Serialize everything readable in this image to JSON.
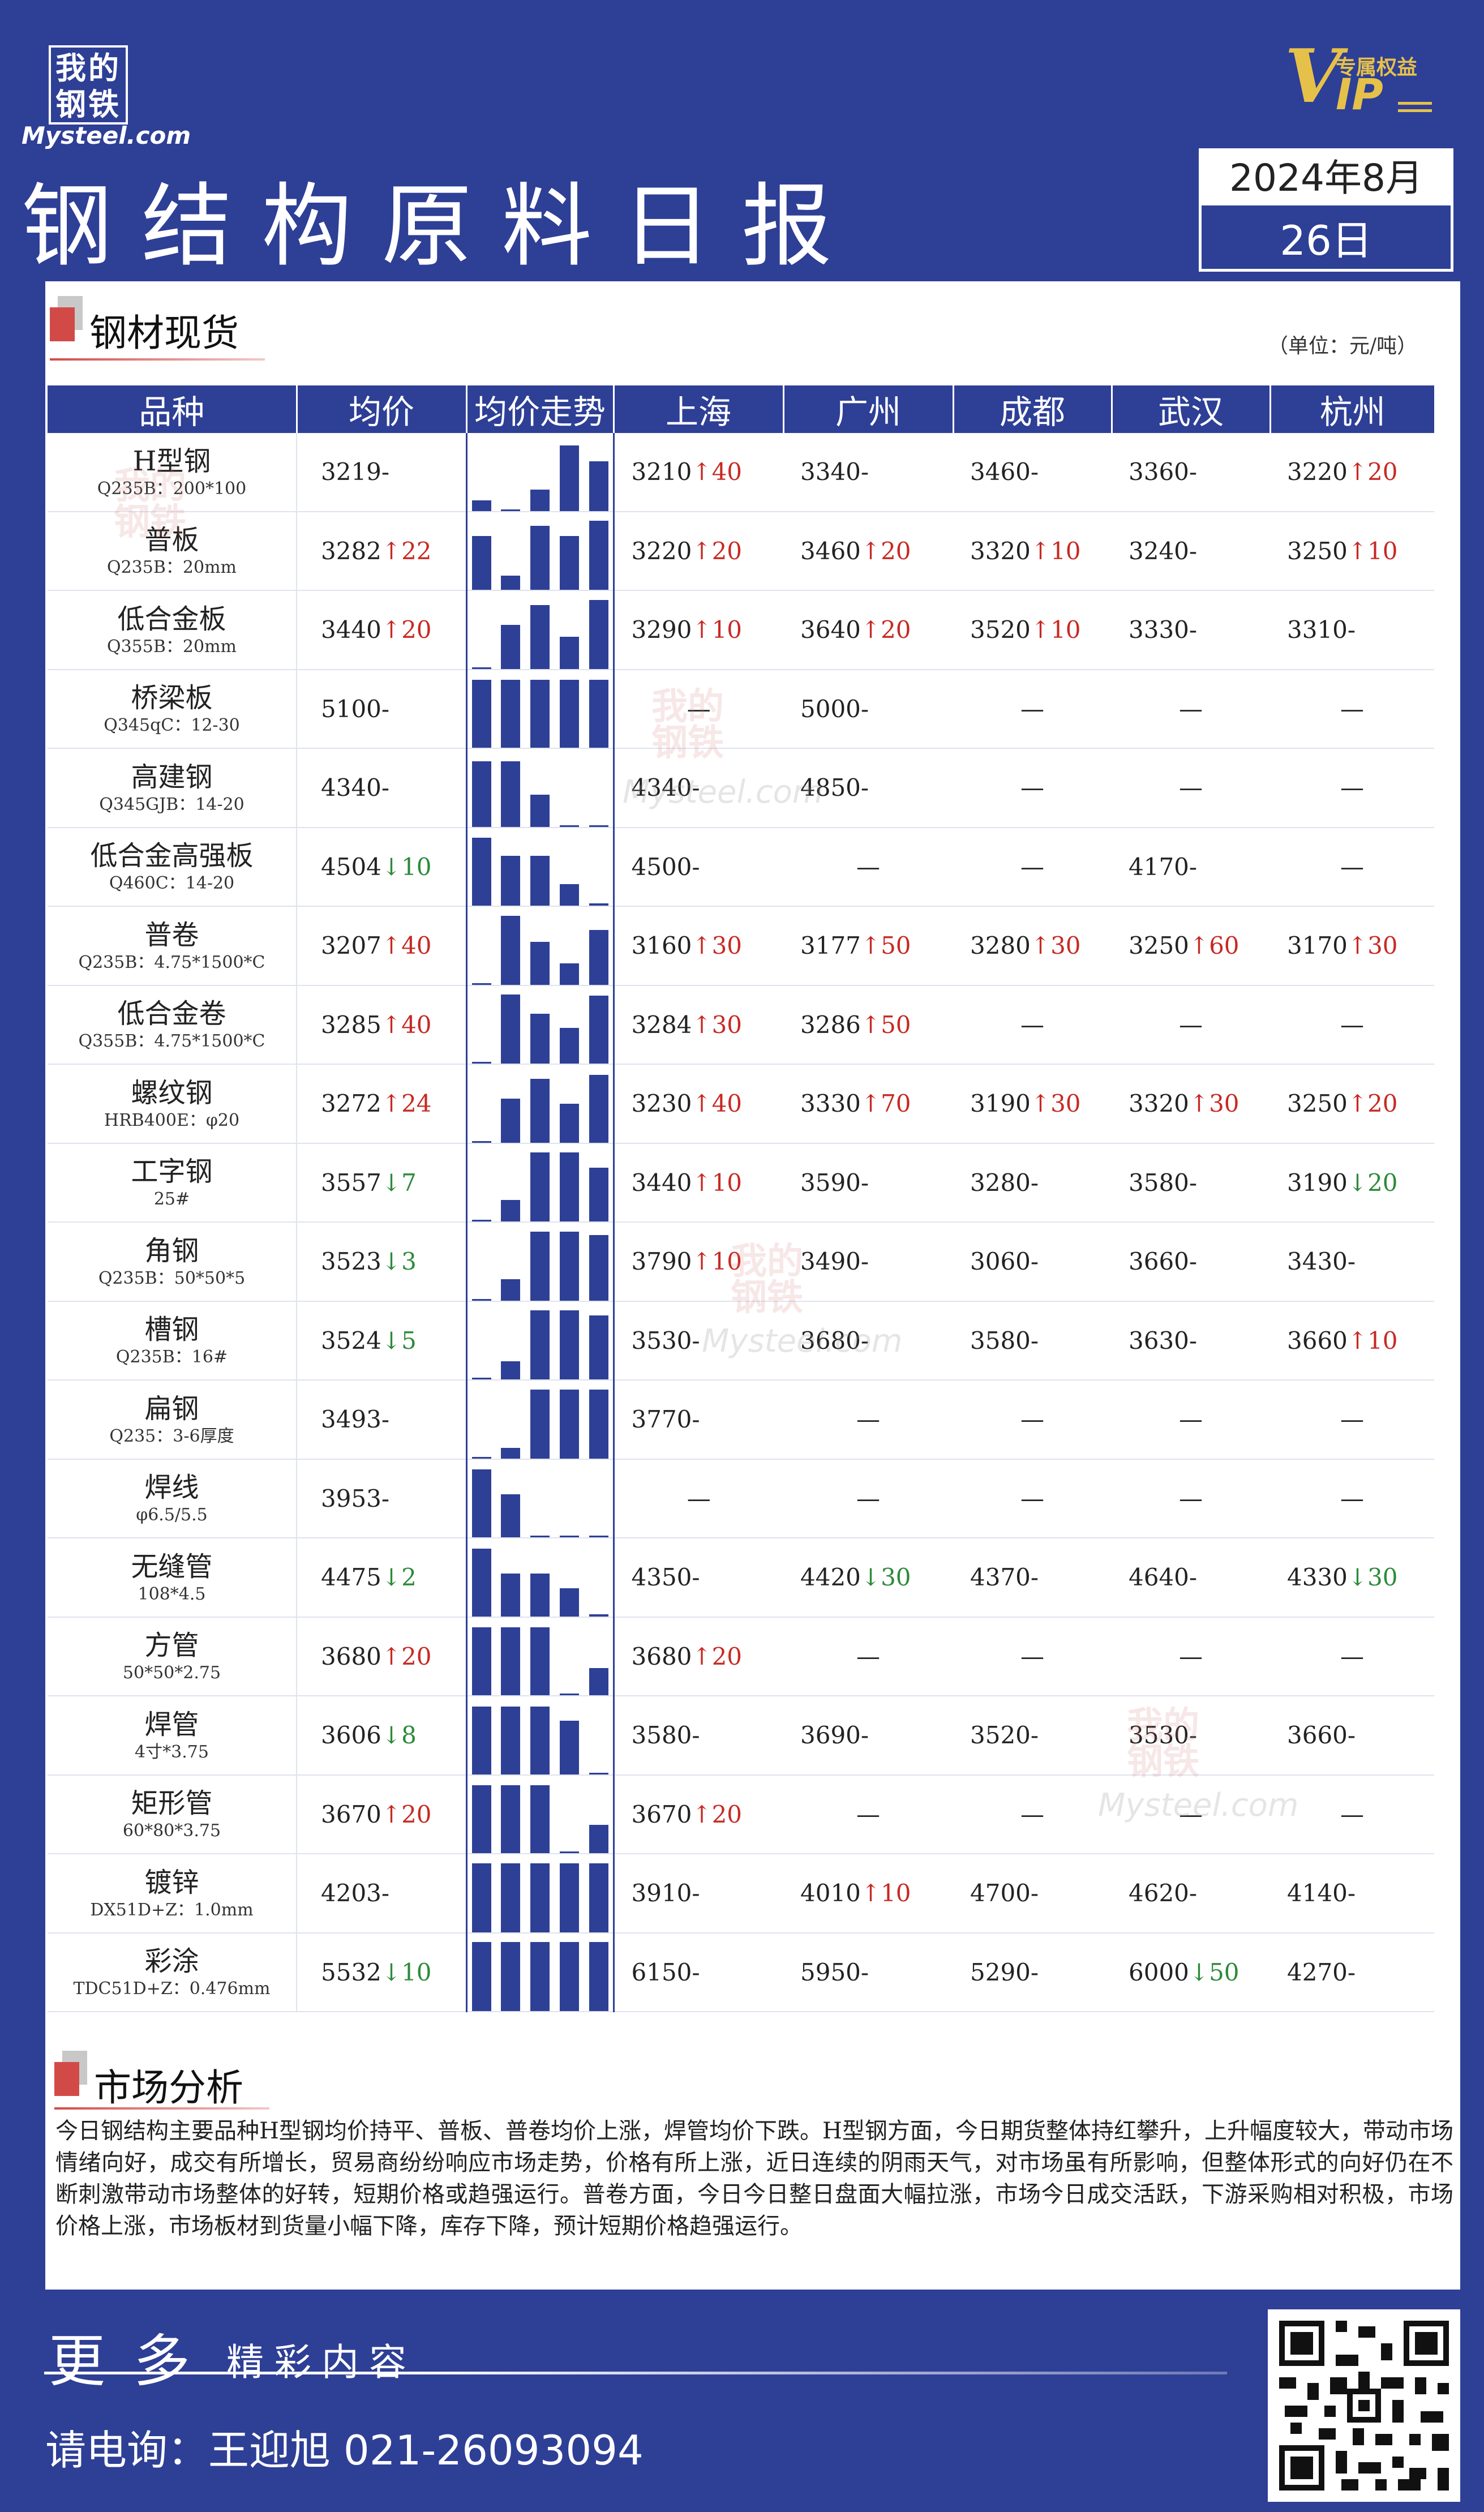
{
  "header": {
    "logo_cn": "我的钢铁",
    "logo_en": "Mysteel.com",
    "vip_tag": "专属权益",
    "vip_mark": "VIP",
    "title": "钢结构原料日报",
    "date_ym": "2024年8月",
    "date_d": "26日"
  },
  "section_spot": {
    "title": "钢材现货",
    "unit": "（单位：元/吨）"
  },
  "table": {
    "headers": [
      "品种",
      "均价",
      "均价走势",
      "上海",
      "广州",
      "成都",
      "武汉",
      "杭州"
    ],
    "rows": [
      {
        "name": "H型钢",
        "spec": "Q235B：200*100",
        "avg": "3219",
        "avg_chg": "-",
        "trend": [
          0.15,
          0.02,
          0.3,
          0.92,
          0.7
        ],
        "sh": "3210",
        "sh_chg": "↑40",
        "gz": "3340",
        "gz_chg": "-",
        "cd": "3460",
        "cd_chg": "-",
        "wh": "3360",
        "wh_chg": "-",
        "hz": "3220",
        "hz_chg": "↑20"
      },
      {
        "name": "普板",
        "spec": "Q235B：20mm",
        "avg": "3282",
        "avg_chg": "↑22",
        "trend": [
          0.75,
          0.2,
          0.9,
          0.75,
          0.97
        ],
        "sh": "3220",
        "sh_chg": "↑20",
        "gz": "3460",
        "gz_chg": "↑20",
        "cd": "3320",
        "cd_chg": "↑10",
        "wh": "3240",
        "wh_chg": "-",
        "hz": "3250",
        "hz_chg": "↑10"
      },
      {
        "name": "低合金板",
        "spec": "Q355B：20mm",
        "avg": "3440",
        "avg_chg": "↑20",
        "trend": [
          0.02,
          0.62,
          0.9,
          0.45,
          0.97
        ],
        "sh": "3290",
        "sh_chg": "↑10",
        "gz": "3640",
        "gz_chg": "↑20",
        "cd": "3520",
        "cd_chg": "↑10",
        "wh": "3330",
        "wh_chg": "-",
        "hz": "3310",
        "hz_chg": "-"
      },
      {
        "name": "桥梁板",
        "spec": "Q345qC：12-30",
        "avg": "5100",
        "avg_chg": "-",
        "trend": [
          0.95,
          0.95,
          0.95,
          0.95,
          0.95
        ],
        "sh": "",
        "sh_chg": "—",
        "gz": "5000",
        "gz_chg": "-",
        "cd": "",
        "cd_chg": "—",
        "wh": "",
        "wh_chg": "—",
        "hz": "",
        "hz_chg": "—"
      },
      {
        "name": "高建钢",
        "spec": "Q345GJB：14-20",
        "avg": "4340",
        "avg_chg": "-",
        "trend": [
          0.92,
          0.92,
          0.45,
          0.02,
          0.02
        ],
        "sh": "4340",
        "sh_chg": "-",
        "gz": "4850",
        "gz_chg": "-",
        "cd": "",
        "cd_chg": "—",
        "wh": "",
        "wh_chg": "—",
        "hz": "",
        "hz_chg": "—"
      },
      {
        "name": "低合金高强板",
        "spec": "Q460C：14-20",
        "avg": "4504",
        "avg_chg": "↓10",
        "trend": [
          0.95,
          0.7,
          0.7,
          0.3,
          0.03
        ],
        "sh": "4500",
        "sh_chg": "-",
        "gz": "",
        "gz_chg": "—",
        "cd": "",
        "cd_chg": "—",
        "wh": "4170",
        "wh_chg": "-",
        "hz": "",
        "hz_chg": "—"
      },
      {
        "name": "普卷",
        "spec": "Q235B：4.75*1500*C",
        "avg": "3207",
        "avg_chg": "↑40",
        "trend": [
          0.02,
          0.97,
          0.6,
          0.3,
          0.77
        ],
        "sh": "3160",
        "sh_chg": "↑30",
        "gz": "3177",
        "gz_chg": "↑50",
        "cd": "3280",
        "cd_chg": "↑30",
        "wh": "3250",
        "wh_chg": "↑60",
        "hz": "3170",
        "hz_chg": "↑30"
      },
      {
        "name": "低合金卷",
        "spec": "Q355B：4.75*1500*C",
        "avg": "3285",
        "avg_chg": "↑40",
        "trend": [
          0.02,
          0.97,
          0.7,
          0.5,
          0.95
        ],
        "sh": "3284",
        "sh_chg": "↑30",
        "gz": "3286",
        "gz_chg": "↑50",
        "cd": "",
        "cd_chg": "—",
        "wh": "",
        "wh_chg": "—",
        "hz": "",
        "hz_chg": "—"
      },
      {
        "name": "螺纹钢",
        "spec": "HRB400E：φ20",
        "avg": "3272",
        "avg_chg": "↑24",
        "trend": [
          0.02,
          0.62,
          0.9,
          0.55,
          0.95
        ],
        "sh": "3230",
        "sh_chg": "↑40",
        "gz": "3330",
        "gz_chg": "↑70",
        "cd": "3190",
        "cd_chg": "↑30",
        "wh": "3320",
        "wh_chg": "↑30",
        "hz": "3250",
        "hz_chg": "↑20"
      },
      {
        "name": "工字钢",
        "spec": "25#",
        "avg": "3557",
        "avg_chg": "↓7",
        "trend": [
          0.02,
          0.3,
          0.97,
          0.97,
          0.75
        ],
        "sh": "3440",
        "sh_chg": "↑10",
        "gz": "3590",
        "gz_chg": "-",
        "cd": "3280",
        "cd_chg": "-",
        "wh": "3580",
        "wh_chg": "-",
        "hz": "3190",
        "hz_chg": "↓20"
      },
      {
        "name": "角钢",
        "spec": "Q235B：50*50*5",
        "avg": "3523",
        "avg_chg": "↓3",
        "trend": [
          0.02,
          0.3,
          0.97,
          0.97,
          0.92
        ],
        "sh": "3790",
        "sh_chg": "↑10",
        "gz": "3490",
        "gz_chg": "-",
        "cd": "3060",
        "cd_chg": "-",
        "wh": "3660",
        "wh_chg": "-",
        "hz": "3430",
        "hz_chg": "-"
      },
      {
        "name": "槽钢",
        "spec": "Q235B：16#",
        "avg": "3524",
        "avg_chg": "↓5",
        "trend": [
          0.02,
          0.25,
          0.97,
          0.97,
          0.9
        ],
        "sh": "3530",
        "sh_chg": "-",
        "gz": "3680",
        "gz_chg": "-",
        "cd": "3580",
        "cd_chg": "-",
        "wh": "3630",
        "wh_chg": "-",
        "hz": "3660",
        "hz_chg": "↑10"
      },
      {
        "name": "扁钢",
        "spec": "Q235：3-6厚度",
        "avg": "3493",
        "avg_chg": "-",
        "trend": [
          0.02,
          0.15,
          0.97,
          0.97,
          0.97
        ],
        "sh": "3770",
        "sh_chg": "-",
        "gz": "",
        "gz_chg": "—",
        "cd": "",
        "cd_chg": "—",
        "wh": "",
        "wh_chg": "—",
        "hz": "",
        "hz_chg": "—"
      },
      {
        "name": "焊线",
        "spec": "φ6.5/5.5",
        "avg": "3953",
        "avg_chg": "-",
        "trend": [
          0.95,
          0.6,
          0.02,
          0.02,
          0.02
        ],
        "sh": "",
        "sh_chg": "—",
        "gz": "",
        "gz_chg": "—",
        "cd": "",
        "cd_chg": "—",
        "wh": "",
        "wh_chg": "—",
        "hz": "",
        "hz_chg": "—"
      },
      {
        "name": "无缝管",
        "spec": "108*4.5",
        "avg": "4475",
        "avg_chg": "↓2",
        "trend": [
          0.95,
          0.6,
          0.6,
          0.4,
          0.03
        ],
        "sh": "4350",
        "sh_chg": "-",
        "gz": "4420",
        "gz_chg": "↓30",
        "cd": "4370",
        "cd_chg": "-",
        "wh": "4640",
        "wh_chg": "-",
        "hz": "4330",
        "hz_chg": "↓30"
      },
      {
        "name": "方管",
        "spec": "50*50*2.75",
        "avg": "3680",
        "avg_chg": "↑20",
        "trend": [
          0.95,
          0.95,
          0.95,
          0.02,
          0.38
        ],
        "sh": "3680",
        "sh_chg": "↑20",
        "gz": "",
        "gz_chg": "—",
        "cd": "",
        "cd_chg": "—",
        "wh": "",
        "wh_chg": "—",
        "hz": "",
        "hz_chg": "—"
      },
      {
        "name": "焊管",
        "spec": "4寸*3.75",
        "avg": "3606",
        "avg_chg": "↓8",
        "trend": [
          0.95,
          0.95,
          0.95,
          0.75,
          0.02
        ],
        "sh": "3580",
        "sh_chg": "-",
        "gz": "3690",
        "gz_chg": "-",
        "cd": "3520",
        "cd_chg": "-",
        "wh": "3530",
        "wh_chg": "-",
        "hz": "3660",
        "hz_chg": "-"
      },
      {
        "name": "矩形管",
        "spec": "60*80*3.75",
        "avg": "3670",
        "avg_chg": "↑20",
        "trend": [
          0.95,
          0.95,
          0.95,
          0.02,
          0.4
        ],
        "sh": "3670",
        "sh_chg": "↑20",
        "gz": "",
        "gz_chg": "—",
        "cd": "",
        "cd_chg": "—",
        "wh": "",
        "wh_chg": "—",
        "hz": "",
        "hz_chg": "—"
      },
      {
        "name": "镀锌",
        "spec": "DX51D+Z：1.0mm",
        "avg": "4203",
        "avg_chg": "-",
        "trend": [
          0.97,
          0.97,
          0.97,
          0.97,
          0.97
        ],
        "sh": "3910",
        "sh_chg": "-",
        "gz": "4010",
        "gz_chg": "↑10",
        "cd": "4700",
        "cd_chg": "-",
        "wh": "4620",
        "wh_chg": "-",
        "hz": "4140",
        "hz_chg": "-"
      },
      {
        "name": "彩涂",
        "spec": "TDC51D+Z：0.476mm",
        "avg": "5532",
        "avg_chg": "↓10",
        "trend": [
          0.97,
          0.97,
          0.97,
          0.97,
          0.97
        ],
        "sh": "6150",
        "sh_chg": "-",
        "gz": "5950",
        "gz_chg": "-",
        "cd": "5290",
        "cd_chg": "-",
        "wh": "6000",
        "wh_chg": "↓50",
        "hz": "4270",
        "hz_chg": "-"
      }
    ]
  },
  "section_analysis": {
    "title": "市场分析",
    "text": "今日钢结构主要品种H型钢均价持平、普板、普卷均价上涨，焊管均价下跌。H型钢方面，今日期货整体持红攀升，上升幅度较大，带动市场情绪向好，成交有所增长，贸易商纷纷响应市场走势，价格有所上涨，近日连续的阴雨天气，对市场虽有所影响，但整体形式的向好仍在不断刺激带动市场整体的好转，短期价格或趋强运行。普卷方面，今日今日整日盘面大幅拉涨，市场今日成交活跃，下游采购相对积极，市场价格上涨，市场板材到货量小幅下降，库存下降，预计短期价格趋强运行。"
  },
  "footer": {
    "more": "更多",
    "more_sub": "精彩内容",
    "contact": "请电询：王迎旭  021-26093094"
  },
  "colors": {
    "brand_blue": "#2e3f96",
    "up_red": "#c62a23",
    "down_green": "#2c8a3a",
    "accent_gold": "#e6c14a"
  }
}
